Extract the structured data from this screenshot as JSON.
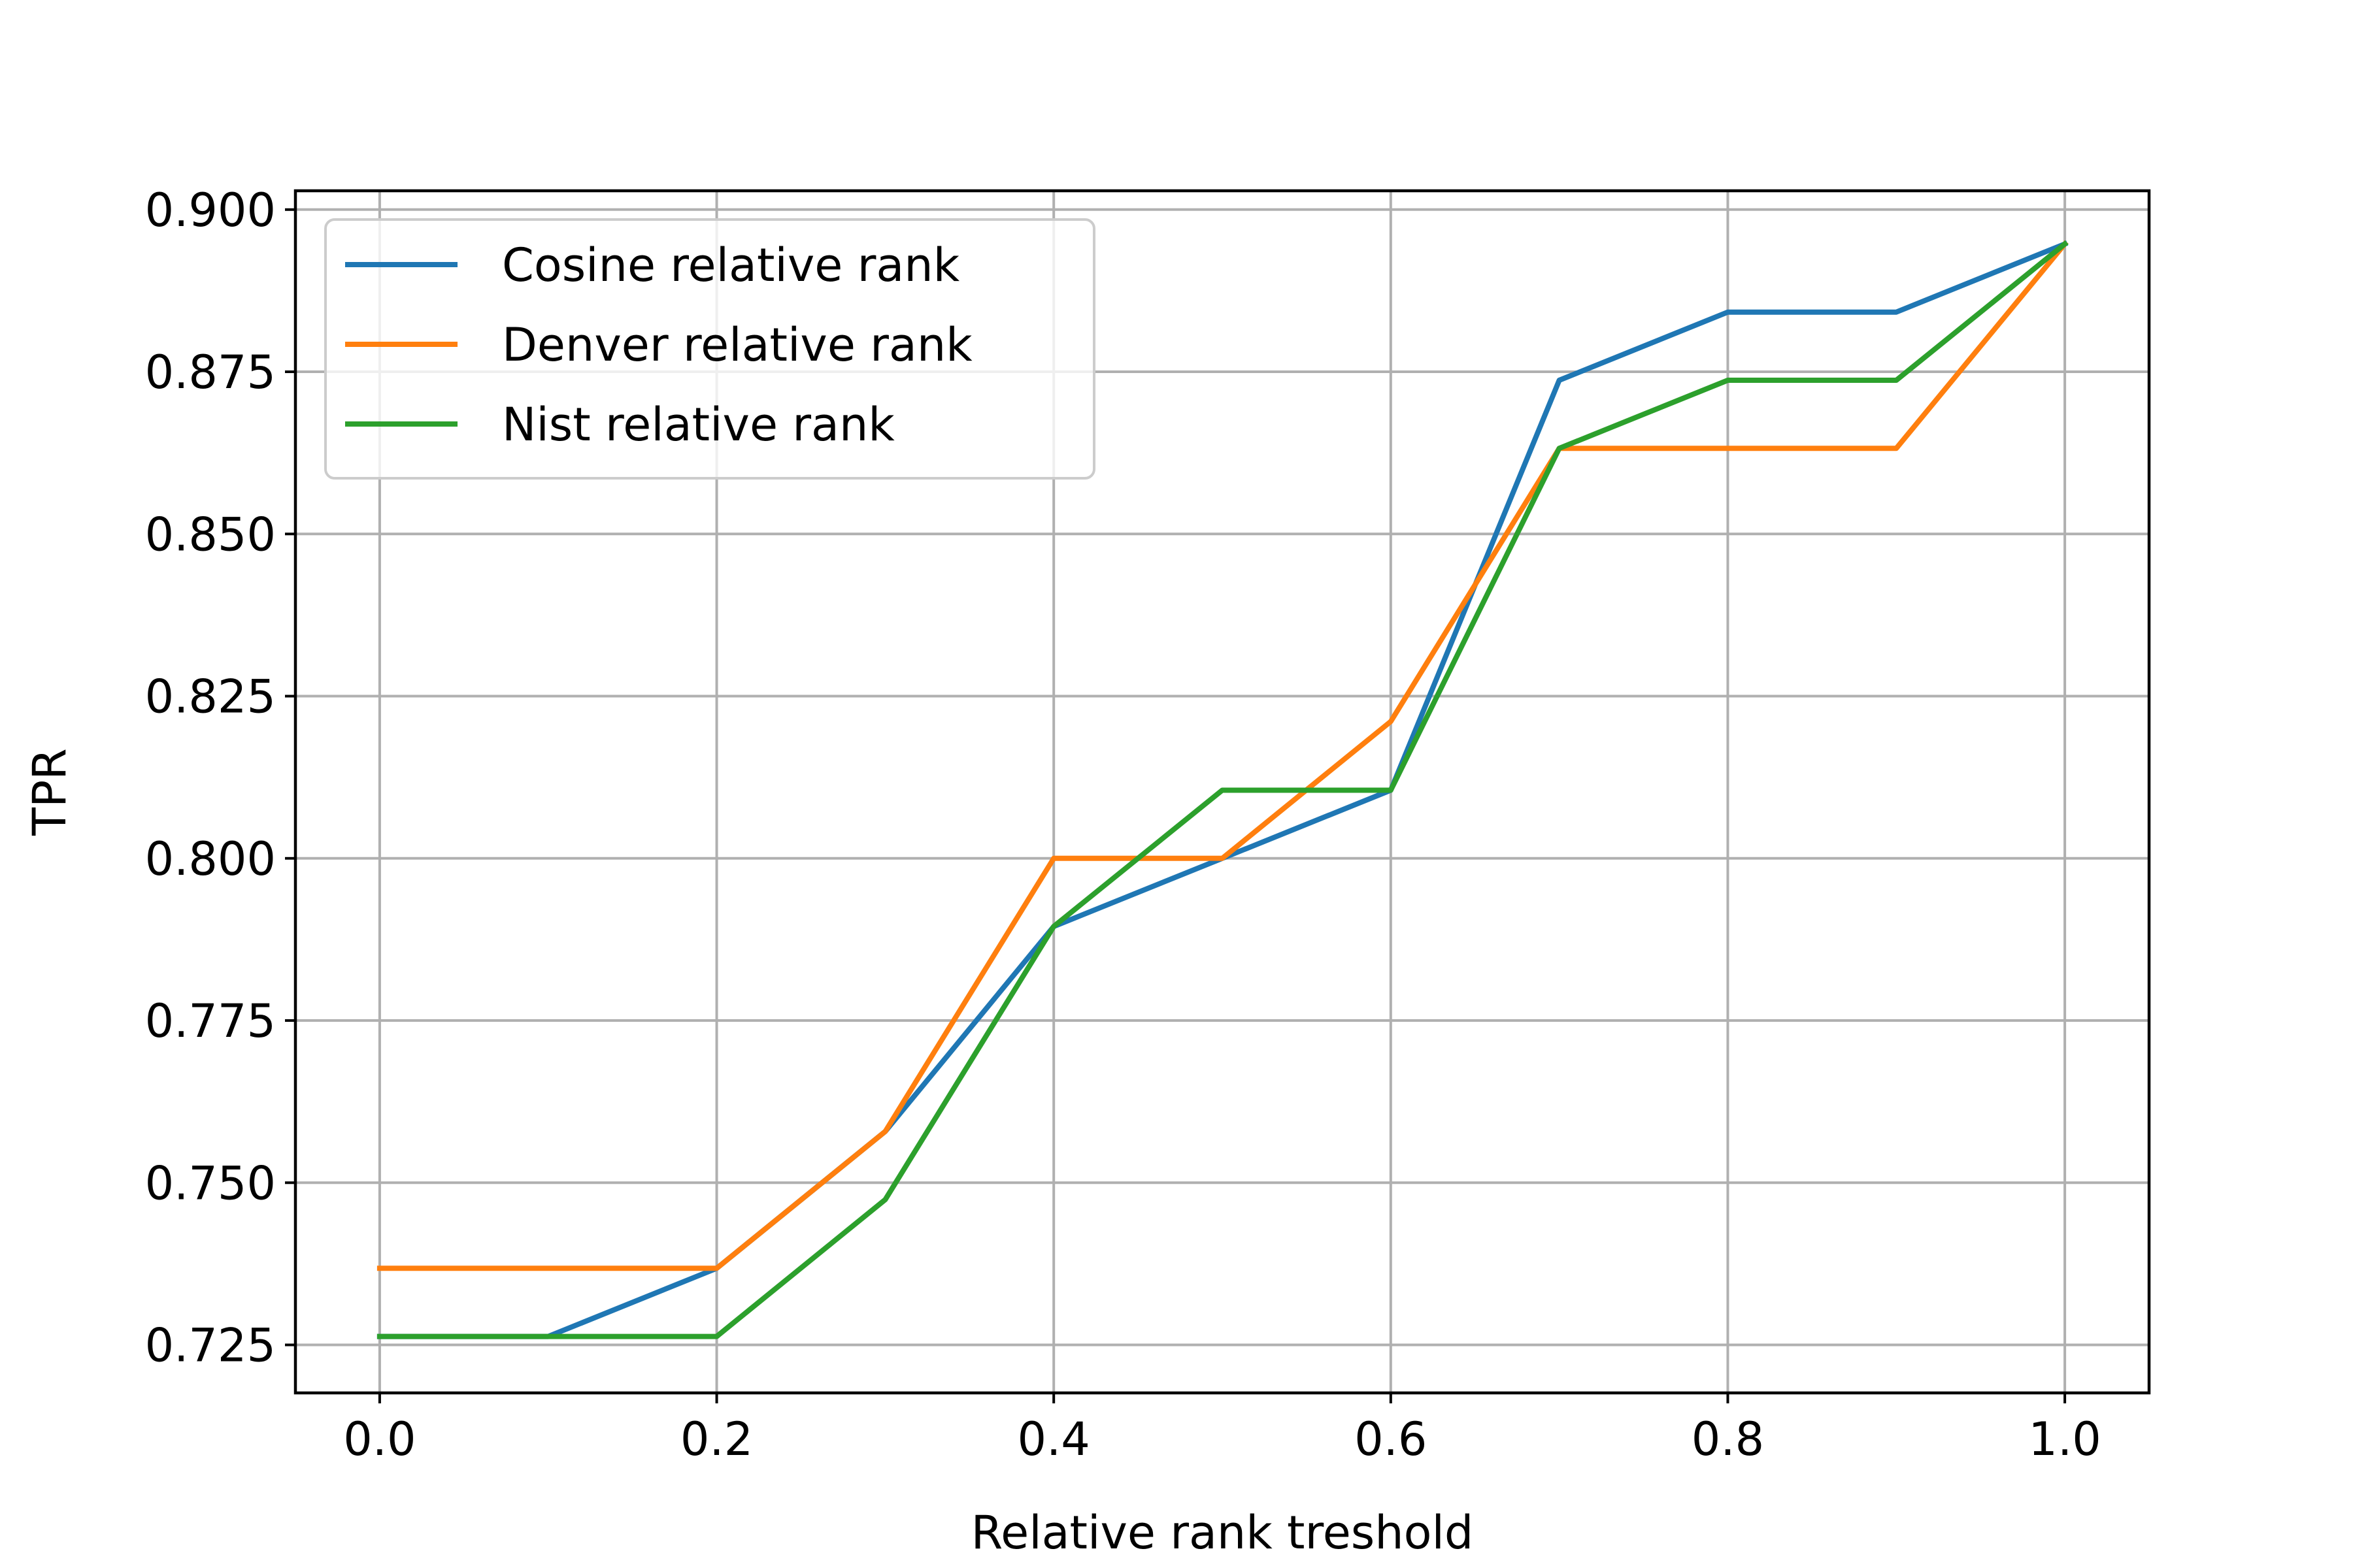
{
  "chart_data": {
    "type": "line",
    "title": "",
    "xlabel": "Relative rank treshold",
    "ylabel": "TPR",
    "x": [
      0.0,
      0.1,
      0.2,
      0.3,
      0.4,
      0.5,
      0.6,
      0.7,
      0.8,
      0.9,
      1.0
    ],
    "xlim": [
      -0.05,
      1.05
    ],
    "ylim": [
      0.7176,
      0.9029
    ],
    "xticks": [
      0.0,
      0.2,
      0.4,
      0.6,
      0.8,
      1.0
    ],
    "xtick_labels": [
      "0.0",
      "0.2",
      "0.4",
      "0.6",
      "0.8",
      "1.0"
    ],
    "yticks": [
      0.725,
      0.75,
      0.775,
      0.8,
      0.825,
      0.85,
      0.875,
      0.9
    ],
    "ytick_labels": [
      "0.725",
      "0.750",
      "0.775",
      "0.800",
      "0.825",
      "0.850",
      "0.875",
      "0.900"
    ],
    "grid": true,
    "legend_position": "upper-left",
    "series": [
      {
        "name": "Cosine relative rank",
        "color": "#1f77b4",
        "values": [
          0.7263,
          0.7263,
          0.7368,
          0.7579,
          0.7895,
          0.8,
          0.8105,
          0.8737,
          0.8842,
          0.8842,
          0.8947
        ]
      },
      {
        "name": "Denver relative rank",
        "color": "#ff7f0e",
        "values": [
          0.7368,
          0.7368,
          0.7368,
          0.7579,
          0.8,
          0.8,
          0.8211,
          0.8632,
          0.8632,
          0.8632,
          0.8947
        ]
      },
      {
        "name": "Nist relative rank",
        "color": "#2ca02c",
        "values": [
          0.7263,
          0.7263,
          0.7263,
          0.7474,
          0.7895,
          0.8105,
          0.8105,
          0.8632,
          0.8737,
          0.8737,
          0.8947
        ]
      }
    ]
  }
}
